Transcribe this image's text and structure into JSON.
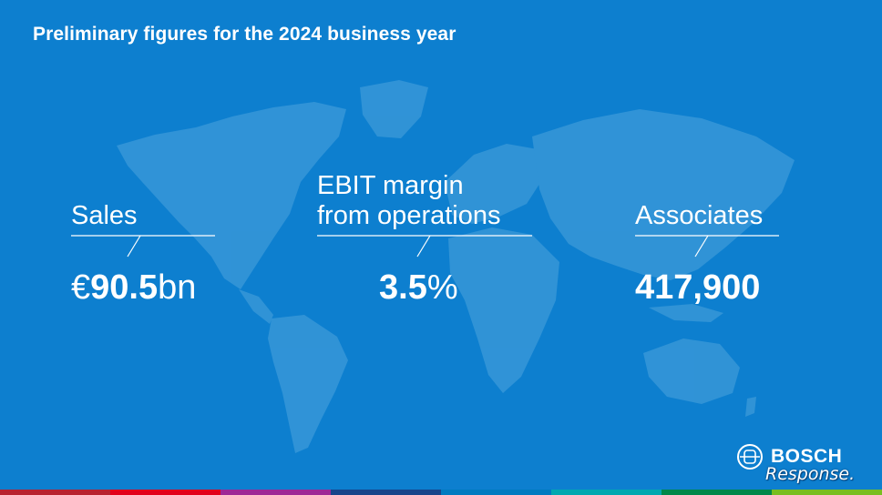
{
  "slide": {
    "title": "Preliminary figures for the 2024 business year",
    "background_color": "#0d7fcf",
    "map_color": "#3c9ad9"
  },
  "kpis": [
    {
      "label": "Sales",
      "value_prefix": "€",
      "value_main": "90.5",
      "value_suffix": "bn"
    },
    {
      "label": "EBIT margin\nfrom operations",
      "value_prefix": "",
      "value_main": "3.5",
      "value_suffix": "%"
    },
    {
      "label": "Associates",
      "value_prefix": "",
      "value_main": "417,900",
      "value_suffix": ""
    }
  ],
  "brand": {
    "logo_text": "BOSCH",
    "logo_icon": "bosch-armature-icon",
    "watermark": "Response."
  },
  "bottom_strip_colors": [
    "#b8232f",
    "#e2001a",
    "#9e2896",
    "#18458b",
    "#007bc0",
    "#00a8b0",
    "#00884a",
    "#78be20"
  ]
}
